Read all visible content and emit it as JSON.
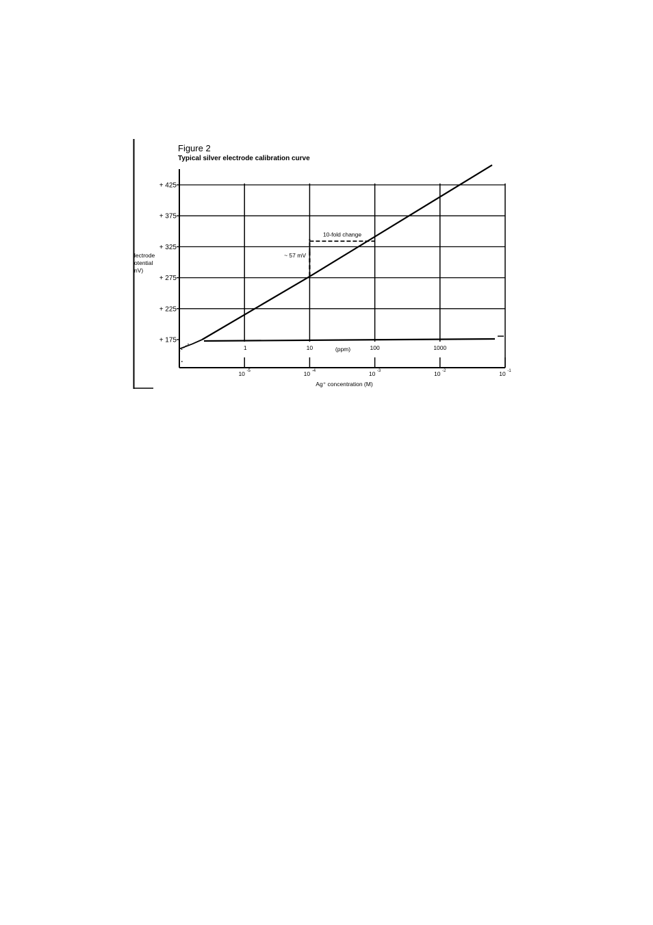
{
  "chart_data": {
    "type": "line",
    "title": "Figure 2",
    "subtitle": "Typical silver electrode calibration curve",
    "ylabel_lines": [
      "lectrode",
      "otential",
      "nV)"
    ],
    "xlabel": "Ag⁺ concentration (M)",
    "yticks": [
      {
        "value": 425,
        "label": "+ 425"
      },
      {
        "value": 375,
        "label": "+ 375"
      },
      {
        "value": 325,
        "label": "+ 325"
      },
      {
        "value": 275,
        "label": "+ 275"
      },
      {
        "value": 225,
        "label": "+ 225"
      },
      {
        "value": 175,
        "label": "+ 175"
      }
    ],
    "ylim": [
      140,
      440
    ],
    "xlim_log10_molar": [
      -6,
      -1
    ],
    "x_molar_ticks": [
      {
        "exp": -5,
        "base": "10",
        "sup": "-5"
      },
      {
        "exp": -4,
        "base": "10",
        "sup": "-4"
      },
      {
        "exp": -3,
        "base": "10",
        "sup": "-3"
      },
      {
        "exp": -2,
        "base": "10",
        "sup": "-2"
      },
      {
        "exp": -1,
        "base": "10",
        "sup": "-1"
      }
    ],
    "x_ppm_ticks": [
      {
        "exp": -5,
        "label": "1"
      },
      {
        "exp": -4,
        "label": "10"
      },
      {
        "exp": -3,
        "label": "100"
      },
      {
        "exp": -2,
        "label": "1000"
      }
    ],
    "ppm_unit_label": "(ppm)",
    "grid": true,
    "series": [
      {
        "points": [
          {
            "x": -5.65,
            "y": 175
          },
          {
            "x": -4.0,
            "y": 277
          },
          {
            "x": -1.2,
            "y": 457
          }
        ]
      }
    ],
    "low_end_curve": [
      {
        "x": -6.0,
        "y": 160
      },
      {
        "x": -5.8,
        "y": 168
      },
      {
        "x": -5.65,
        "y": 175
      }
    ],
    "annotations": {
      "fold_label": "10-fold change",
      "mv_label": "~ 57 mV",
      "fold_from": -4.0,
      "fold_to": -3.0,
      "mv_bottom": 277,
      "mv_top": 334
    }
  }
}
